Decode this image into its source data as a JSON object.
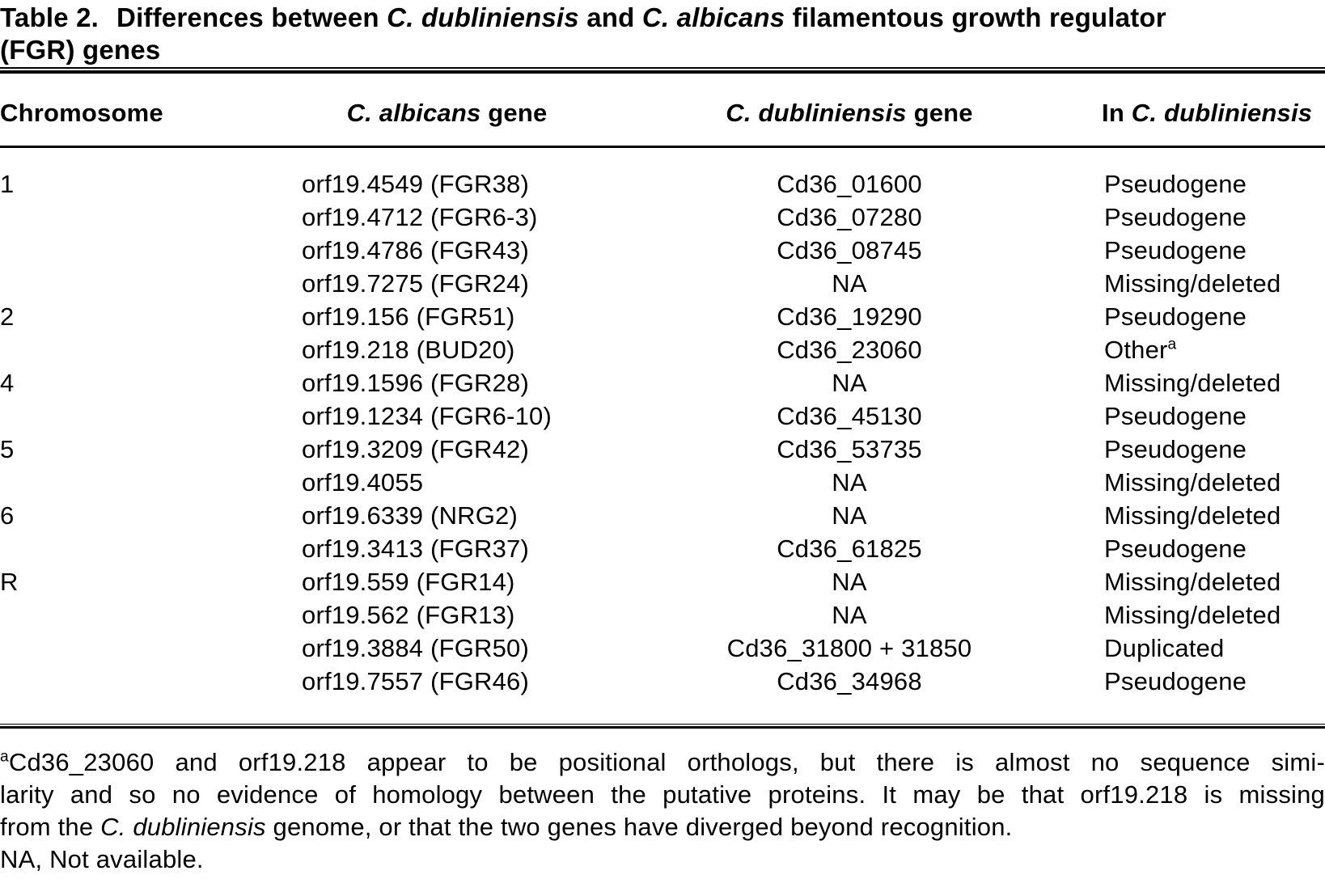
{
  "title": {
    "label": "Table 2.",
    "seg1": "Differences between ",
    "species1": "C. dubliniensis",
    "seg2": " and ",
    "species2": "C. albicans",
    "seg3": " filamentous growth regulator",
    "line2": "(FGR) genes"
  },
  "table": {
    "columns": {
      "chromosome": "Chromosome",
      "albicans": {
        "species": "C. albicans",
        "suffix": " gene"
      },
      "dubliniensis": {
        "species": "C. dubliniensis",
        "suffix": " gene"
      },
      "in_dubliniensis": {
        "prefix": "In ",
        "species": "C. dubliniensis"
      }
    },
    "rows": [
      {
        "chromosome": "1",
        "albicans_gene": "orf19.4549 (FGR38)",
        "dubliniensis_gene": "Cd36_01600",
        "status": "Pseudogene"
      },
      {
        "chromosome": "",
        "albicans_gene": "orf19.4712 (FGR6-3)",
        "dubliniensis_gene": "Cd36_07280",
        "status": "Pseudogene"
      },
      {
        "chromosome": "",
        "albicans_gene": "orf19.4786 (FGR43)",
        "dubliniensis_gene": "Cd36_08745",
        "status": "Pseudogene"
      },
      {
        "chromosome": "",
        "albicans_gene": "orf19.7275 (FGR24)",
        "dubliniensis_gene": "NA",
        "status": "Missing/deleted"
      },
      {
        "chromosome": "2",
        "albicans_gene": "orf19.156 (FGR51)",
        "dubliniensis_gene": "Cd36_19290",
        "status": "Pseudogene"
      },
      {
        "chromosome": "",
        "albicans_gene": "orf19.218 (BUD20)",
        "dubliniensis_gene": "Cd36_23060",
        "status": "Other",
        "status_note": "a"
      },
      {
        "chromosome": "4",
        "albicans_gene": "orf19.1596 (FGR28)",
        "dubliniensis_gene": "NA",
        "status": "Missing/deleted"
      },
      {
        "chromosome": "",
        "albicans_gene": "orf19.1234 (FGR6-10)",
        "dubliniensis_gene": "Cd36_45130",
        "status": "Pseudogene"
      },
      {
        "chromosome": "5",
        "albicans_gene": "orf19.3209 (FGR42)",
        "dubliniensis_gene": "Cd36_53735",
        "status": "Pseudogene"
      },
      {
        "chromosome": "",
        "albicans_gene": "orf19.4055",
        "dubliniensis_gene": "NA",
        "status": "Missing/deleted"
      },
      {
        "chromosome": "6",
        "albicans_gene": "orf19.6339 (NRG2)",
        "dubliniensis_gene": "NA",
        "status": "Missing/deleted"
      },
      {
        "chromosome": "",
        "albicans_gene": "orf19.3413 (FGR37)",
        "dubliniensis_gene": "Cd36_61825",
        "status": "Pseudogene"
      },
      {
        "chromosome": "R",
        "albicans_gene": "orf19.559 (FGR14)",
        "dubliniensis_gene": "NA",
        "status": "Missing/deleted"
      },
      {
        "chromosome": "",
        "albicans_gene": "orf19.562 (FGR13)",
        "dubliniensis_gene": "NA",
        "status": "Missing/deleted"
      },
      {
        "chromosome": "",
        "albicans_gene": "orf19.3884 (FGR50)",
        "dubliniensis_gene": "Cd36_31800 + 31850",
        "status": "Duplicated"
      },
      {
        "chromosome": "",
        "albicans_gene": "orf19.7557 (FGR46)",
        "dubliniensis_gene": "Cd36_34968",
        "status": "Pseudogene"
      }
    ]
  },
  "footnote": {
    "marker": "a",
    "line1": "Cd36_23060 and orf19.218 appear to be positional orthologs, but there is almost no sequence simi-",
    "line2": "larity and so no evidence of homology between the putative proteins. It may be that orf19.218 is missing",
    "line3": {
      "seg1": "from the ",
      "species": "C. dubliniensis",
      "seg2": " genome, or that the two genes have diverged beyond recognition."
    },
    "line4": "NA, Not available."
  }
}
